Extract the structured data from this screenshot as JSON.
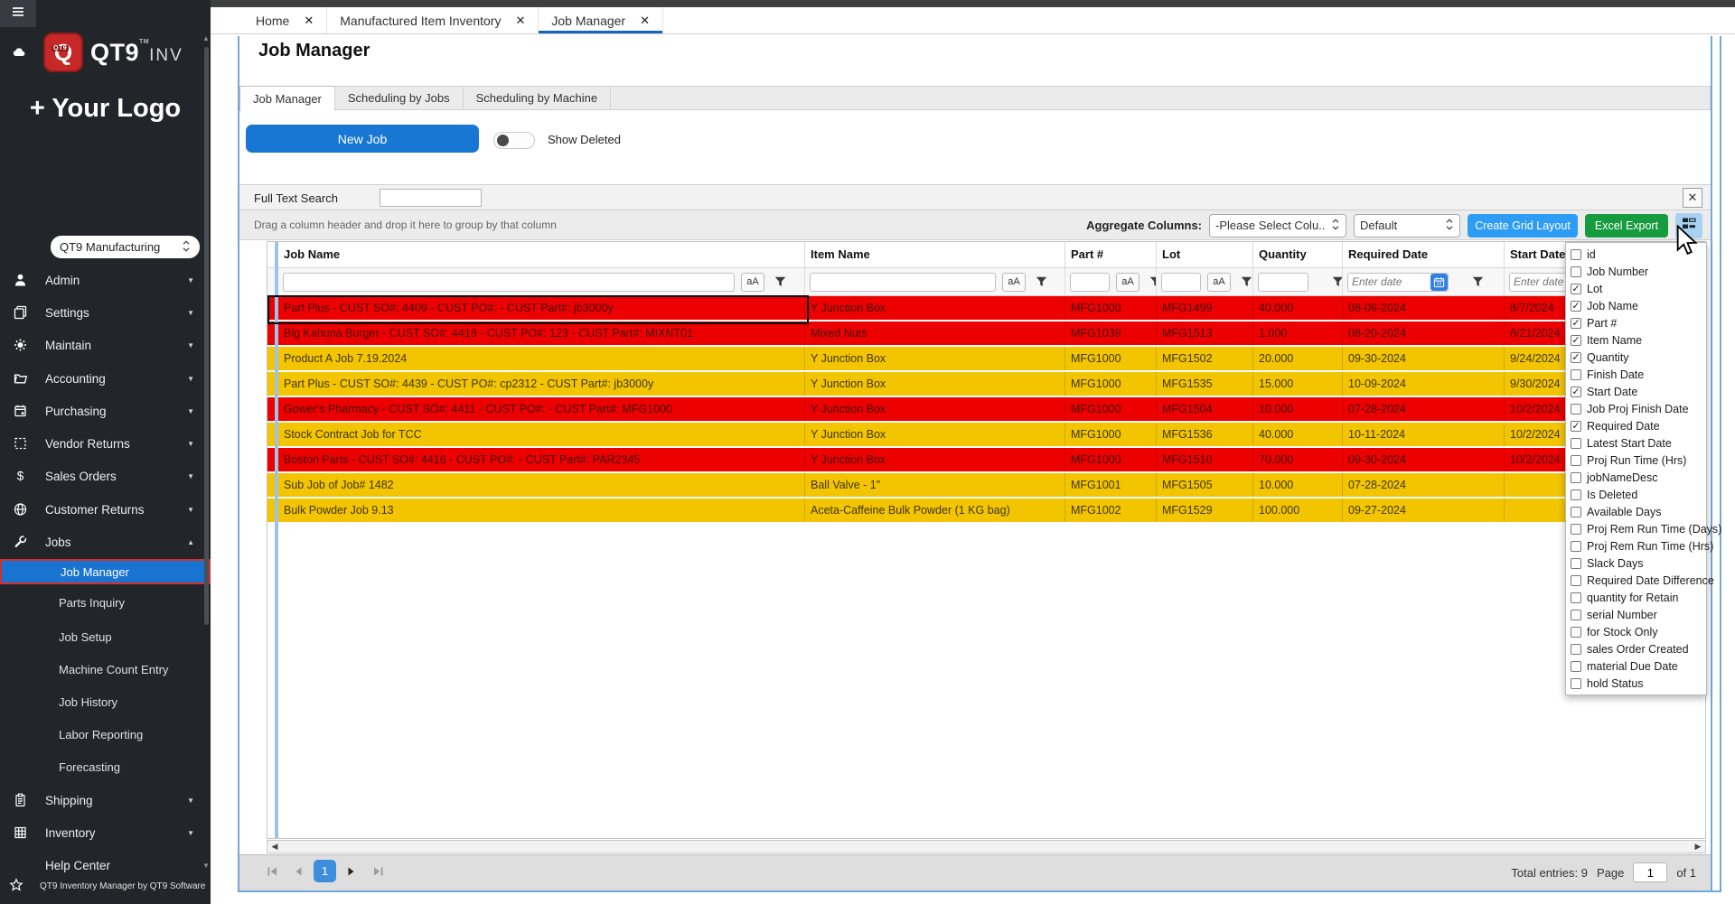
{
  "browser_tabs": [
    {
      "label": "Home",
      "active": false
    },
    {
      "label": "Manufactured Item Inventory",
      "active": false
    },
    {
      "label": "Job Manager",
      "active": true
    }
  ],
  "sidebar": {
    "logo": {
      "q": "Q",
      "qt9_small": "QT9",
      "brand": "QT9",
      "brand_suffix": "INV",
      "tm": "TM"
    },
    "your_logo": "+ Your Logo",
    "company": "QT9 Manufacturing",
    "items": [
      {
        "label": "Admin",
        "icon": "person-icon",
        "chevron": "down"
      },
      {
        "label": "Settings",
        "icon": "layers-icon",
        "chevron": "down"
      },
      {
        "label": "Maintain",
        "icon": "gear-icon",
        "chevron": "down"
      },
      {
        "label": "Accounting",
        "icon": "folder-icon",
        "chevron": "down"
      },
      {
        "label": "Purchasing",
        "icon": "calendar-icon",
        "chevron": "down"
      },
      {
        "label": "Vendor Returns",
        "icon": "dashed-square-icon",
        "chevron": "down"
      },
      {
        "label": "Sales Orders",
        "icon": "dollar-icon",
        "chevron": "down"
      },
      {
        "label": "Customer Returns",
        "icon": "globe-icon",
        "chevron": "down"
      },
      {
        "label": "Jobs",
        "icon": "wrench-icon",
        "chevron": "up"
      }
    ],
    "jobs_children": [
      {
        "label": "Job Manager",
        "selected": true
      },
      {
        "label": "Parts Inquiry",
        "selected": false
      },
      {
        "label": "Job Setup",
        "selected": false
      },
      {
        "label": "Machine Count Entry",
        "selected": false
      },
      {
        "label": "Job History",
        "selected": false
      },
      {
        "label": "Labor Reporting",
        "selected": false
      },
      {
        "label": "Forecasting",
        "selected": false
      }
    ],
    "items_after": [
      {
        "label": "Shipping",
        "icon": "clipboard-icon",
        "chevron": "down"
      },
      {
        "label": "Inventory",
        "icon": "grid-icon",
        "chevron": "down"
      },
      {
        "label": "Help Center",
        "icon": "",
        "chevron": ""
      }
    ],
    "footer": "QT9 Inventory Manager by QT9 Software"
  },
  "page": {
    "title": "Job Manager",
    "subtabs": [
      {
        "label": "Job Manager",
        "active": true
      },
      {
        "label": "Scheduling by Jobs",
        "active": false
      },
      {
        "label": "Scheduling by Machine",
        "active": false
      }
    ]
  },
  "actions": {
    "new_job": "New Job",
    "show_deleted": "Show Deleted",
    "toggle_on": false
  },
  "search": {
    "label": "Full Text Search",
    "value": ""
  },
  "toolbar": {
    "drag_hint": "Drag a column header and drop it here to group by that column",
    "aggregate_label": "Aggregate Columns:",
    "aggregate_value": "-Please Select Colu...",
    "layout_value": "Default",
    "create_grid_label": "Create Grid Layout",
    "excel_label": "Excel Export"
  },
  "grid": {
    "columns": [
      {
        "label": "Job Name",
        "aA": true,
        "funnel": true,
        "input": true
      },
      {
        "label": "Item Name",
        "aA": true,
        "funnel": true,
        "input": true
      },
      {
        "label": "Part #",
        "aA": true,
        "funnel": true,
        "input": true
      },
      {
        "label": "Lot",
        "aA": true,
        "funnel": true,
        "input": true
      },
      {
        "label": "Quantity",
        "aA": false,
        "funnel": true,
        "input": true
      },
      {
        "label": "Required Date",
        "aA": false,
        "funnel": true,
        "input": true,
        "placeholder": "Enter date",
        "calendar": true
      },
      {
        "label": "Start Date",
        "aA": false,
        "funnel": false,
        "input": true,
        "placeholder": "Enter date"
      }
    ],
    "rows": [
      {
        "job": "Part Plus  - CUST SO#: 4409  - CUST PO#:   - CUST Part#: jb3000y",
        "item": "Y Junction Box",
        "part": "MFG1000",
        "lot": "MFG1499",
        "qty": "40.000",
        "req": "08-09-2024",
        "start": "8/7/2024",
        "color": "red",
        "selected": true
      },
      {
        "job": "Big Kahuna Burger  - CUST SO#: 4418  - CUST PO#: 123  - CUST Part#: MIXNT01",
        "item": "Mixed Nuts",
        "part": "MFG1039",
        "lot": "MFG1513",
        "qty": "1.000",
        "req": "08-20-2024",
        "start": "8/21/2024",
        "color": "red",
        "selected": false
      },
      {
        "job": "Product A Job 7.19.2024",
        "item": "Y Junction Box",
        "part": "MFG1000",
        "lot": "MFG1502",
        "qty": "20.000",
        "req": "09-30-2024",
        "start": "9/24/2024",
        "color": "yellow",
        "selected": false
      },
      {
        "job": "Part Plus  - CUST SO#: 4439  - CUST PO#: cp2312  - CUST Part#: jb3000y",
        "item": "Y Junction Box",
        "part": "MFG1000",
        "lot": "MFG1535",
        "qty": "15.000",
        "req": "10-09-2024",
        "start": "9/30/2024",
        "color": "yellow",
        "selected": false
      },
      {
        "job": "Gower's Pharmacy  - CUST SO#: 4411  - CUST PO#:   - CUST Part#: MFG1000",
        "item": "Y Junction Box",
        "part": "MFG1000",
        "lot": "MFG1504",
        "qty": "10.000",
        "req": "07-28-2024",
        "start": "10/2/2024",
        "color": "red",
        "selected": false
      },
      {
        "job": "Stock Contract Job for TCC",
        "item": "Y Junction Box",
        "part": "MFG1000",
        "lot": "MFG1536",
        "qty": "40.000",
        "req": "10-11-2024",
        "start": "10/2/2024",
        "color": "yellow",
        "selected": false
      },
      {
        "job": "Boston Parts   - CUST SO#: 4416  - CUST PO#:   - CUST Part#: PAR2345",
        "item": "Y Junction Box",
        "part": "MFG1000",
        "lot": "MFG1510",
        "qty": "70.000",
        "req": "09-30-2024",
        "start": "10/2/2024",
        "color": "red",
        "selected": false
      },
      {
        "job": "Sub Job of Job# 1482",
        "item": "Ball Valve - 1\"",
        "part": "MFG1001",
        "lot": "MFG1505",
        "qty": "10.000",
        "req": "07-28-2024",
        "start": "",
        "color": "yellow",
        "selected": false
      },
      {
        "job": "Bulk Powder Job 9.13",
        "item": "Aceta-Caffeine Bulk Powder (1 KG bag)",
        "part": "MFG1002",
        "lot": "MFG1529",
        "qty": "100.000",
        "req": "09-27-2024",
        "start": "",
        "color": "yellow",
        "selected": false
      }
    ]
  },
  "column_chooser": {
    "items": [
      {
        "label": "id",
        "checked": false
      },
      {
        "label": "Job Number",
        "checked": false
      },
      {
        "label": "Lot",
        "checked": true
      },
      {
        "label": "Job Name",
        "checked": true
      },
      {
        "label": "Part #",
        "checked": true
      },
      {
        "label": "Item Name",
        "checked": true
      },
      {
        "label": "Quantity",
        "checked": true
      },
      {
        "label": "Finish Date",
        "checked": false
      },
      {
        "label": "Start Date",
        "checked": true
      },
      {
        "label": "Job Proj Finish Date",
        "checked": false
      },
      {
        "label": "Required Date",
        "checked": true
      },
      {
        "label": "Latest Start Date",
        "checked": false
      },
      {
        "label": "Proj Run Time (Hrs)",
        "checked": false
      },
      {
        "label": "jobNameDesc",
        "checked": false
      },
      {
        "label": "Is Deleted",
        "checked": false
      },
      {
        "label": "Available Days",
        "checked": false
      },
      {
        "label": "Proj Rem Run Time (Days)",
        "checked": false
      },
      {
        "label": "Proj Rem Run Time (Hrs)",
        "checked": false
      },
      {
        "label": "Slack Days",
        "checked": false
      },
      {
        "label": "Required Date Difference",
        "checked": false
      },
      {
        "label": "quantity for Retain",
        "checked": false
      },
      {
        "label": "serial Number",
        "checked": false
      },
      {
        "label": "for Stock Only",
        "checked": false
      },
      {
        "label": "sales Order Created",
        "checked": false
      },
      {
        "label": "material Due Date",
        "checked": false
      },
      {
        "label": "hold Status",
        "checked": false
      }
    ]
  },
  "pager": {
    "total_label": "Total entries: 9",
    "page_label": "Page",
    "page_value": "1",
    "of_label": "of 1",
    "current_page": "1"
  },
  "colors": {
    "row_red": "#ed0000",
    "row_yellow": "#f2c500",
    "row_red_text": "#44100a",
    "row_yellow_text": "#423502",
    "accent_blue": "#1777d2",
    "create_grid_blue": "#2d9cf4",
    "excel_green": "#169b3e",
    "active_tab_blue": "#1565c0",
    "selected_nav_blue": "#1873d1",
    "panel_border_blue": "#72a9dc"
  }
}
